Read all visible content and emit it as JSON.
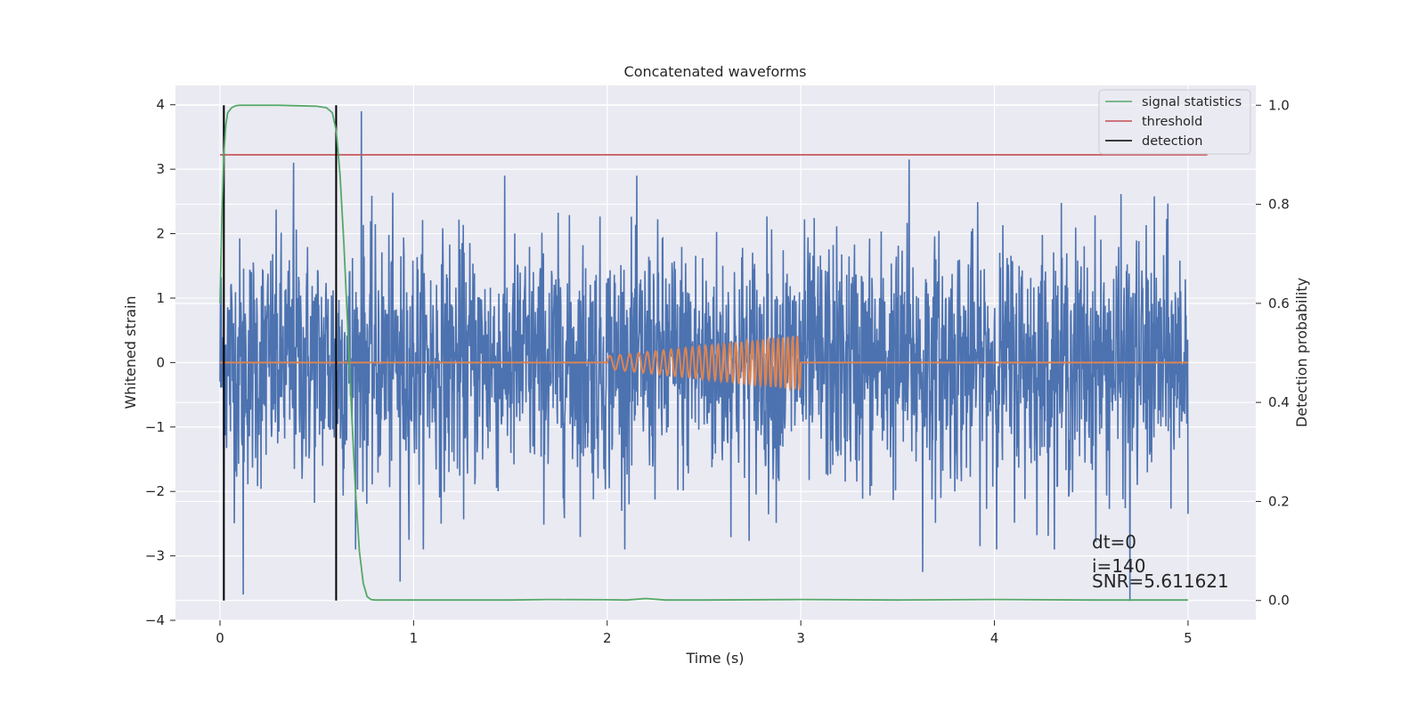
{
  "chart_data": {
    "type": "line",
    "title": "Concatenated waveforms",
    "xlabel": "Time (s)",
    "ylabel": "Whitened strain",
    "ylabel_right": "Detection probability",
    "xlim": [
      -0.23,
      5.35
    ],
    "ylim": [
      -4.0,
      4.3
    ],
    "ylim_right": [
      -0.04,
      1.04
    ],
    "xticks": [
      0,
      1,
      2,
      3,
      4,
      5
    ],
    "xtick_labels": [
      "0",
      "1",
      "2",
      "3",
      "4",
      "5"
    ],
    "yticks": [
      -4,
      -3,
      -2,
      -1,
      0,
      1,
      2,
      3,
      4
    ],
    "ytick_labels": [
      "−4",
      "−3",
      "−2",
      "−1",
      "0",
      "1",
      "2",
      "3",
      "4"
    ],
    "yticks_right": [
      0.0,
      0.2,
      0.4,
      0.6,
      0.8,
      1.0
    ],
    "ytick_labels_right": [
      "0.0",
      "0.2",
      "0.4",
      "0.6",
      "0.8",
      "1.0"
    ],
    "grid": true,
    "legend_position": "top-right",
    "series": [
      {
        "name": "",
        "axis": "left",
        "style": "whitened strain noise (dense random trace)",
        "x_range": [
          0,
          5
        ],
        "sample_count": 2500,
        "amplitude_std": 1.0,
        "peaks": [
          {
            "x": 0.73,
            "y": 3.9
          },
          {
            "x": 0.38,
            "y": 3.1
          },
          {
            "x": 3.56,
            "y": 3.15
          },
          {
            "x": 0.12,
            "y": -3.6
          },
          {
            "x": 0.93,
            "y": -3.4
          },
          {
            "x": 4.7,
            "y": -3.7
          },
          {
            "x": 3.63,
            "y": -3.25
          }
        ]
      },
      {
        "name": "",
        "axis": "left",
        "style": "injected chirp",
        "x_range": [
          0,
          5
        ],
        "chirp_start": 2.0,
        "chirp_end": 3.0,
        "amplitude_start": 0.1,
        "amplitude_end": 0.42,
        "freq_start_hz": 18,
        "freq_end_hz": 42
      },
      {
        "name": "signal statistics",
        "axis": "right",
        "x": [
          0.0,
          0.01,
          0.02,
          0.03,
          0.04,
          0.06,
          0.08,
          0.1,
          0.2,
          0.3,
          0.4,
          0.5,
          0.55,
          0.58,
          0.6,
          0.62,
          0.64,
          0.66,
          0.68,
          0.7,
          0.72,
          0.74,
          0.76,
          0.78,
          0.8,
          1.0,
          1.5,
          1.7,
          2.0,
          2.1,
          2.2,
          2.3,
          2.5,
          3.0,
          3.5,
          4.0,
          4.5,
          5.0
        ],
        "y": [
          0.6,
          0.78,
          0.9,
          0.96,
          0.985,
          0.995,
          0.999,
          1.0,
          1.0,
          1.0,
          0.999,
          0.998,
          0.995,
          0.985,
          0.95,
          0.86,
          0.72,
          0.55,
          0.38,
          0.22,
          0.1,
          0.035,
          0.008,
          0.002,
          0.001,
          0.001,
          0.001,
          0.002,
          0.0015,
          0.001,
          0.004,
          0.001,
          0.001,
          0.002,
          0.001,
          0.002,
          0.001,
          0.001
        ]
      },
      {
        "name": "threshold",
        "axis": "right",
        "x": [
          0.0,
          5.1
        ],
        "y": [
          0.9,
          0.9
        ]
      },
      {
        "name": "detection",
        "axis": "right",
        "vlines": [
          0.02,
          0.6
        ],
        "ymin": 0.0,
        "ymax": 1.0
      }
    ],
    "annotations": [
      "dt=0",
      "i=140",
      "SNR=5.611621"
    ],
    "colors": {
      "noise": "#4c72b0",
      "chirp": "#dd8452",
      "signal statistics": "#55a868",
      "threshold": "#c44e52",
      "detection": "#000000",
      "axes_background": "#eaeaf2",
      "grid": "#ffffff"
    }
  }
}
